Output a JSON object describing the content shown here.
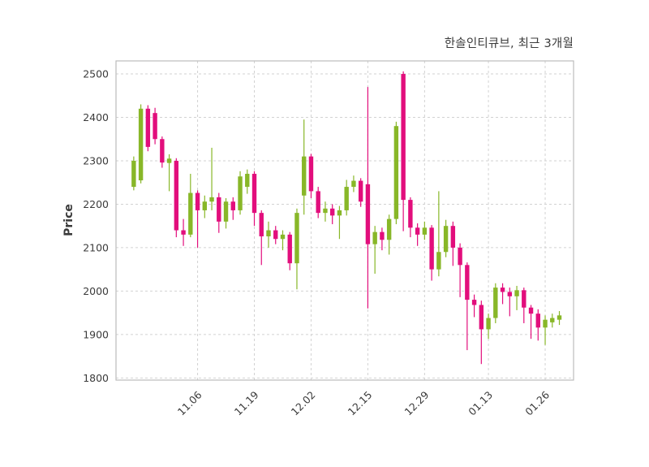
{
  "chart": {
    "title": "한솔인티큐브, 최근 3개월",
    "ylabel": "Price"
  },
  "chart_data": {
    "type": "candlestick",
    "title": "한솔인티큐브, 최근 3개월",
    "xlabel": "",
    "ylabel": "Price",
    "ylim": [
      1795,
      2530
    ],
    "xlim": [
      -2.5,
      62
    ],
    "grid": "dashed",
    "legend": "none",
    "y_ticks": [
      1800,
      1900,
      2000,
      2100,
      2200,
      2300,
      2400,
      2500
    ],
    "x_ticks": [
      {
        "label": "11.06",
        "index": 9
      },
      {
        "label": "11.19",
        "index": 17
      },
      {
        "label": "12.02",
        "index": 25
      },
      {
        "label": "12.15",
        "index": 33
      },
      {
        "label": "12.29",
        "index": 41
      },
      {
        "label": "01.13",
        "index": 50
      },
      {
        "label": "01.26",
        "index": 58
      }
    ],
    "colors": {
      "up": "#88b728",
      "down": "#e20e7c",
      "grid": "#d2d2d2",
      "border": "#bcbcbc",
      "text": "#3b3b3b",
      "background": "#ffffff"
    },
    "candle_format": [
      "open",
      "high",
      "low",
      "close"
    ],
    "candles": [
      [
        2240,
        2310,
        2232,
        2300
      ],
      [
        2255,
        2430,
        2248,
        2420
      ],
      [
        2420,
        2428,
        2322,
        2332
      ],
      [
        2410,
        2422,
        2338,
        2350
      ],
      [
        2350,
        2356,
        2284,
        2296
      ],
      [
        2295,
        2315,
        2230,
        2305
      ],
      [
        2300,
        2306,
        2124,
        2140
      ],
      [
        2140,
        2166,
        2104,
        2130
      ],
      [
        2130,
        2270,
        2124,
        2226
      ],
      [
        2226,
        2232,
        2100,
        2186
      ],
      [
        2186,
        2220,
        2168,
        2206
      ],
      [
        2206,
        2330,
        2186,
        2216
      ],
      [
        2216,
        2226,
        2134,
        2160
      ],
      [
        2160,
        2214,
        2144,
        2206
      ],
      [
        2206,
        2216,
        2164,
        2186
      ],
      [
        2186,
        2276,
        2176,
        2264
      ],
      [
        2240,
        2280,
        2224,
        2270
      ],
      [
        2270,
        2276,
        2150,
        2180
      ],
      [
        2180,
        2186,
        2060,
        2126
      ],
      [
        2126,
        2160,
        2100,
        2140
      ],
      [
        2140,
        2150,
        2108,
        2120
      ],
      [
        2120,
        2140,
        2094,
        2130
      ],
      [
        2130,
        2136,
        2048,
        2064
      ],
      [
        2064,
        2190,
        2004,
        2180
      ],
      [
        2220,
        2395,
        2176,
        2310
      ],
      [
        2310,
        2316,
        2214,
        2230
      ],
      [
        2230,
        2240,
        2168,
        2180
      ],
      [
        2180,
        2206,
        2160,
        2190
      ],
      [
        2190,
        2200,
        2154,
        2174
      ],
      [
        2174,
        2196,
        2120,
        2186
      ],
      [
        2186,
        2256,
        2174,
        2240
      ],
      [
        2240,
        2266,
        2228,
        2254
      ],
      [
        2254,
        2260,
        2194,
        2206
      ],
      [
        2246,
        2470,
        1960,
        2108
      ],
      [
        2108,
        2150,
        2040,
        2136
      ],
      [
        2136,
        2146,
        2094,
        2118
      ],
      [
        2118,
        2176,
        2084,
        2166
      ],
      [
        2166,
        2390,
        2154,
        2380
      ],
      [
        2500,
        2506,
        2138,
        2210
      ],
      [
        2210,
        2216,
        2124,
        2146
      ],
      [
        2146,
        2156,
        2104,
        2130
      ],
      [
        2130,
        2160,
        2118,
        2146
      ],
      [
        2146,
        2152,
        2024,
        2050
      ],
      [
        2050,
        2230,
        2034,
        2090
      ],
      [
        2090,
        2164,
        2078,
        2150
      ],
      [
        2150,
        2160,
        2058,
        2100
      ],
      [
        2100,
        2110,
        1986,
        2060
      ],
      [
        2060,
        2066,
        1864,
        1980
      ],
      [
        1980,
        1992,
        1940,
        1968
      ],
      [
        1968,
        1978,
        1832,
        1912
      ],
      [
        1912,
        1948,
        1890,
        1938
      ],
      [
        1938,
        2018,
        1926,
        2008
      ],
      [
        2008,
        2018,
        1970,
        1998
      ],
      [
        1998,
        2008,
        1942,
        1988
      ],
      [
        1988,
        2012,
        1956,
        2002
      ],
      [
        2002,
        2008,
        1926,
        1962
      ],
      [
        1962,
        1968,
        1890,
        1948
      ],
      [
        1948,
        1958,
        1886,
        1916
      ],
      [
        1916,
        1944,
        1876,
        1934
      ],
      [
        1928,
        1948,
        1916,
        1938
      ],
      [
        1934,
        1954,
        1922,
        1944
      ]
    ]
  }
}
